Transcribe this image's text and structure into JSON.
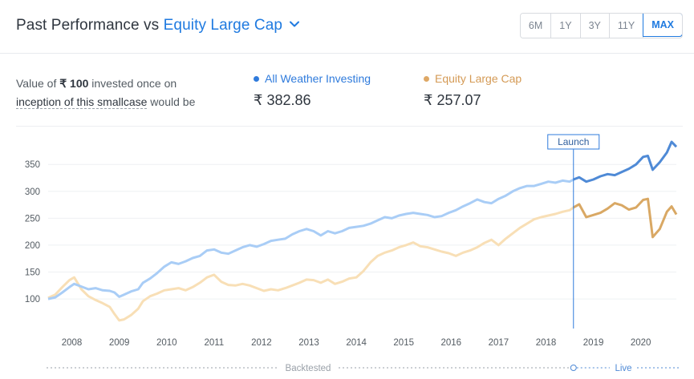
{
  "header": {
    "title_prefix": "Past Performance vs",
    "benchmark": "Equity Large Cap",
    "periods": [
      "6M",
      "1Y",
      "3Y",
      "11Y",
      "MAX"
    ],
    "active_period": "MAX"
  },
  "summary": {
    "desc_1": "Value of ",
    "amount": "₹ 100",
    "desc_2": " invested once on",
    "link": "inception of this smallcase",
    "desc_3": " would be"
  },
  "legend": [
    {
      "name": "All Weather Investing",
      "value": "₹ 382.86",
      "color": "#2f7bdc"
    },
    {
      "name": "Equity Large Cap",
      "value": "₹ 257.07",
      "color": "#dea866"
    }
  ],
  "colors": {
    "smallcase_backtested": "#a9cdf6",
    "smallcase_live": "#4f8ad6",
    "benchmark_backtested": "#f8dfb6",
    "benchmark_live": "#d9a864",
    "launch_line": "#2f7bdc",
    "timeline": "#9aa1a9"
  },
  "chart_data": {
    "type": "line",
    "x_tick_labels": [
      "2008",
      "2009",
      "2010",
      "2011",
      "2012",
      "2013",
      "2014",
      "2015",
      "2016",
      "2017",
      "2018",
      "2019",
      "2020"
    ],
    "y_tick_labels": [
      "100",
      "150",
      "200",
      "250",
      "300",
      "350"
    ],
    "ylim": [
      45,
      395
    ],
    "xlim": [
      2007.5,
      2020.75
    ],
    "grid": true,
    "launch_x": 2018.58,
    "launch_label": "Launch",
    "timeline_labels": [
      "Backtested",
      "Live"
    ],
    "series": [
      {
        "name": "All Weather Investing",
        "x": [
          2007.5,
          2007.65,
          2007.8,
          2007.95,
          2008.05,
          2008.2,
          2008.35,
          2008.5,
          2008.65,
          2008.8,
          2008.9,
          2009.0,
          2009.1,
          2009.25,
          2009.4,
          2009.5,
          2009.65,
          2009.8,
          2009.95,
          2010.1,
          2010.25,
          2010.4,
          2010.55,
          2010.7,
          2010.85,
          2011.0,
          2011.15,
          2011.3,
          2011.45,
          2011.6,
          2011.75,
          2011.9,
          2012.05,
          2012.2,
          2012.35,
          2012.5,
          2012.65,
          2012.8,
          2012.95,
          2013.1,
          2013.25,
          2013.4,
          2013.55,
          2013.7,
          2013.85,
          2014.0,
          2014.15,
          2014.3,
          2014.45,
          2014.6,
          2014.75,
          2014.9,
          2015.05,
          2015.2,
          2015.35,
          2015.5,
          2015.65,
          2015.8,
          2015.95,
          2016.1,
          2016.25,
          2016.4,
          2016.55,
          2016.7,
          2016.85,
          2017.0,
          2017.15,
          2017.3,
          2017.45,
          2017.6,
          2017.75,
          2017.9,
          2018.05,
          2018.2,
          2018.35,
          2018.5,
          2018.58,
          2018.7,
          2018.85,
          2019.0,
          2019.15,
          2019.3,
          2019.45,
          2019.6,
          2019.75,
          2019.9,
          2020.05,
          2020.15,
          2020.25,
          2020.4,
          2020.55,
          2020.65,
          2020.75
        ],
        "y": [
          100,
          103,
          112,
          122,
          128,
          123,
          118,
          120,
          116,
          115,
          112,
          104,
          108,
          114,
          118,
          130,
          138,
          148,
          160,
          168,
          165,
          170,
          176,
          180,
          190,
          192,
          186,
          184,
          190,
          196,
          200,
          197,
          202,
          208,
          210,
          212,
          220,
          226,
          230,
          226,
          218,
          226,
          222,
          226,
          232,
          234,
          236,
          240,
          246,
          252,
          250,
          255,
          258,
          260,
          258,
          256,
          252,
          254,
          260,
          265,
          272,
          278,
          285,
          280,
          278,
          286,
          292,
          300,
          306,
          310,
          310,
          314,
          318,
          316,
          320,
          318,
          322,
          326,
          318,
          322,
          328,
          332,
          330,
          336,
          342,
          350,
          364,
          366,
          340,
          354,
          372,
          392,
          382.86
        ]
      },
      {
        "name": "Equity Large Cap",
        "x": [
          2007.5,
          2007.65,
          2007.8,
          2007.95,
          2008.05,
          2008.2,
          2008.35,
          2008.5,
          2008.65,
          2008.8,
          2008.9,
          2009.0,
          2009.1,
          2009.25,
          2009.4,
          2009.5,
          2009.65,
          2009.8,
          2009.95,
          2010.1,
          2010.25,
          2010.4,
          2010.55,
          2010.7,
          2010.85,
          2011.0,
          2011.15,
          2011.3,
          2011.45,
          2011.6,
          2011.75,
          2011.9,
          2012.05,
          2012.2,
          2012.35,
          2012.5,
          2012.65,
          2012.8,
          2012.95,
          2013.1,
          2013.25,
          2013.4,
          2013.55,
          2013.7,
          2013.85,
          2014.0,
          2014.15,
          2014.3,
          2014.45,
          2014.6,
          2014.75,
          2014.9,
          2015.05,
          2015.2,
          2015.35,
          2015.5,
          2015.65,
          2015.8,
          2015.95,
          2016.1,
          2016.25,
          2016.4,
          2016.55,
          2016.7,
          2016.85,
          2017.0,
          2017.15,
          2017.3,
          2017.45,
          2017.6,
          2017.75,
          2017.9,
          2018.05,
          2018.2,
          2018.35,
          2018.5,
          2018.58,
          2018.7,
          2018.85,
          2019.0,
          2019.15,
          2019.3,
          2019.45,
          2019.6,
          2019.75,
          2019.9,
          2020.05,
          2020.15,
          2020.25,
          2020.4,
          2020.55,
          2020.65,
          2020.75
        ],
        "y": [
          102,
          108,
          122,
          135,
          140,
          118,
          105,
          98,
          92,
          85,
          72,
          60,
          62,
          70,
          82,
          96,
          105,
          110,
          116,
          118,
          120,
          116,
          122,
          130,
          140,
          145,
          132,
          126,
          125,
          128,
          125,
          120,
          115,
          118,
          116,
          120,
          125,
          130,
          136,
          135,
          130,
          136,
          128,
          132,
          138,
          140,
          152,
          168,
          180,
          186,
          190,
          196,
          200,
          205,
          198,
          196,
          192,
          188,
          185,
          180,
          186,
          190,
          196,
          204,
          210,
          200,
          212,
          222,
          232,
          240,
          248,
          252,
          255,
          258,
          262,
          265,
          270,
          276,
          252,
          256,
          260,
          268,
          278,
          274,
          266,
          270,
          284,
          286,
          215,
          230,
          262,
          272,
          257.07
        ]
      }
    ]
  }
}
